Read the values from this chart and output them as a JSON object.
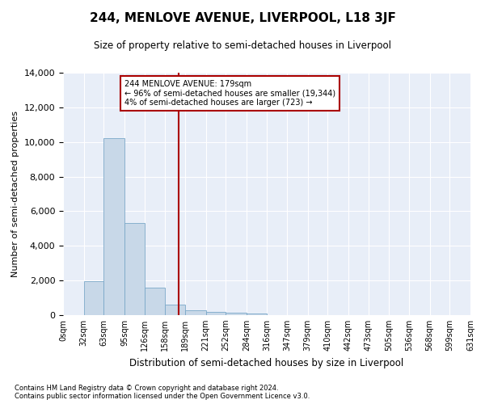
{
  "title": "244, MENLOVE AVENUE, LIVERPOOL, L18 3JF",
  "subtitle": "Size of property relative to semi-detached houses in Liverpool",
  "xlabel": "Distribution of semi-detached houses by size in Liverpool",
  "ylabel": "Number of semi-detached properties",
  "bar_color": "#c8d8e8",
  "bar_edge_color": "#7aa8c8",
  "background_color": "#e8eef8",
  "grid_color": "white",
  "vline_x": 179,
  "vline_color": "#aa0000",
  "annotation_text": "244 MENLOVE AVENUE: 179sqm\n← 96% of semi-detached houses are smaller (19,344)\n4% of semi-detached houses are larger (723) →",
  "annotation_box_color": "#aa0000",
  "footnote": "Contains HM Land Registry data © Crown copyright and database right 2024.\nContains public sector information licensed under the Open Government Licence v3.0.",
  "bin_edges": [
    0,
    32,
    63,
    95,
    126,
    158,
    189,
    221,
    252,
    284,
    316,
    347,
    379,
    410,
    442,
    473,
    505,
    536,
    568,
    599,
    631
  ],
  "bin_labels": [
    "0sqm",
    "32sqm",
    "63sqm",
    "95sqm",
    "126sqm",
    "158sqm",
    "189sqm",
    "221sqm",
    "252sqm",
    "284sqm",
    "316sqm",
    "347sqm",
    "379sqm",
    "410sqm",
    "442sqm",
    "473sqm",
    "505sqm",
    "536sqm",
    "568sqm",
    "599sqm",
    "631sqm"
  ],
  "counts": [
    0,
    1950,
    10200,
    5300,
    1580,
    620,
    300,
    185,
    140,
    110,
    0,
    0,
    0,
    0,
    0,
    0,
    0,
    0,
    0,
    0
  ],
  "ylim": [
    0,
    14000
  ],
  "yticks": [
    0,
    2000,
    4000,
    6000,
    8000,
    10000,
    12000,
    14000
  ]
}
